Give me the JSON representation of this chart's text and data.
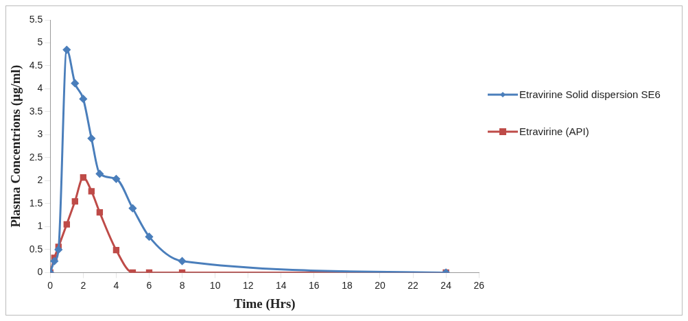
{
  "chart_data": {
    "type": "line",
    "xlabel": "Time (Hrs)",
    "ylabel": "Plasma Concentrions (µg/ml)",
    "series": [
      {
        "name": "Etravirine Solid dispersion SE6",
        "color": "#4a7ebb",
        "marker": "diamond",
        "x": [
          0,
          0.25,
          0.5,
          1,
          1.5,
          2,
          2.5,
          3,
          4,
          5,
          6,
          8,
          24
        ],
        "values": [
          0,
          0.25,
          0.5,
          4.85,
          4.12,
          3.78,
          2.92,
          2.15,
          2.04,
          1.4,
          0.78,
          0.25,
          0
        ]
      },
      {
        "name": "Etravirine (API)",
        "color": "#be4b48",
        "marker": "square",
        "x": [
          0,
          0.25,
          0.5,
          1,
          1.5,
          2,
          2.5,
          3,
          4,
          5,
          6,
          8,
          24
        ],
        "values": [
          0,
          0.32,
          0.56,
          1.05,
          1.55,
          2.07,
          1.77,
          1.31,
          0.49,
          0,
          0,
          0,
          0
        ]
      }
    ],
    "xlim": [
      0,
      26
    ],
    "xticks": [
      0,
      2,
      4,
      6,
      8,
      10,
      12,
      14,
      16,
      18,
      20,
      22,
      24,
      26
    ],
    "ylim": [
      0,
      5.5
    ],
    "yticks": [
      0,
      0.5,
      1,
      1.5,
      2,
      2.5,
      3,
      3.5,
      4,
      4.5,
      5,
      5.5
    ],
    "grid": false,
    "legend": "right"
  }
}
